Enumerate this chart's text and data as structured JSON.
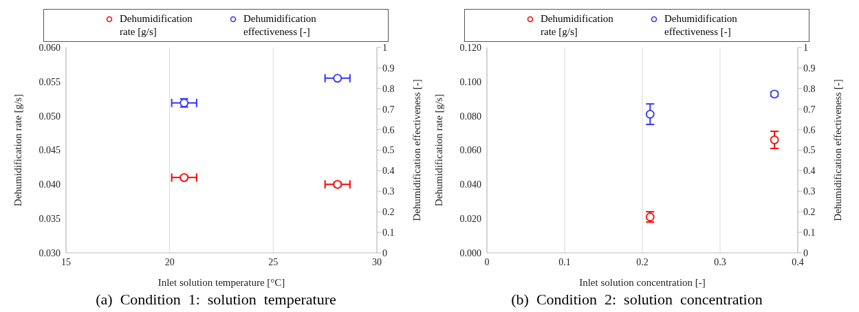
{
  "chart_data": [
    {
      "type": "scatter",
      "title": "(a)  Condition  1:  solution  temperature",
      "xlabel": "Inlet solution temperature [°C]",
      "ylabel": "Dehumidification  rate [g/s]",
      "y2label": "Dehumidification  effectiveness [-]",
      "xlim": [
        15,
        30
      ],
      "xticks": [
        15,
        20,
        25,
        30
      ],
      "ylim": [
        0.03,
        0.06
      ],
      "yticks": [
        {
          "value": 0.03,
          "label": "0.030"
        },
        {
          "value": 0.035,
          "label": "0.035"
        },
        {
          "value": 0.04,
          "label": "0.040"
        },
        {
          "value": 0.045,
          "label": "0.045"
        },
        {
          "value": 0.05,
          "label": "0.050"
        },
        {
          "value": 0.055,
          "label": "0.055"
        },
        {
          "value": 0.06,
          "label": "0.060"
        }
      ],
      "y2lim": [
        0,
        1
      ],
      "y2ticks": [
        0,
        0.1,
        0.2,
        0.3,
        0.4,
        0.5,
        0.6,
        0.7,
        0.8,
        0.9,
        1
      ],
      "grid": true,
      "legend": "top",
      "marker": "circle",
      "series": [
        {
          "name": "Dehumidification rate [g/s]",
          "color": "#ff0000",
          "x": [
            20.7,
            28.1
          ],
          "values": [
            0.041,
            0.04
          ],
          "errors": [
            0.0002,
            0.0003
          ],
          "xerrors": [
            0.6,
            0.6
          ]
        },
        {
          "name": "Dehumidification effectiveness [-]",
          "color": "#3333ff",
          "axis": "y2",
          "x": [
            20.7,
            28.1
          ],
          "values": [
            0.73,
            0.85
          ],
          "errors": [
            0.02,
            0.005
          ],
          "xerrors": [
            0.6,
            0.6
          ]
        }
      ]
    },
    {
      "type": "scatter",
      "title": "(b)  Condition  2:  solution  concentration",
      "xlabel": "Inlet solution concentration [-]",
      "ylabel": "Dehumidification  rate [g/s]",
      "y2label": "Dehumidification  effectiveness [-]",
      "xlim": [
        0,
        0.4
      ],
      "xticks": [
        0,
        0.1,
        0.2,
        0.3,
        0.4
      ],
      "ylim": [
        0,
        0.12
      ],
      "yticks": [
        {
          "value": 0,
          "label": "0.000"
        },
        {
          "value": 0.02,
          "label": "0.020"
        },
        {
          "value": 0.04,
          "label": "0.040"
        },
        {
          "value": 0.06,
          "label": "0.060"
        },
        {
          "value": 0.08,
          "label": "0.080"
        },
        {
          "value": 0.1,
          "label": "0.100"
        },
        {
          "value": 0.12,
          "label": "0.120"
        }
      ],
      "y2lim": [
        0,
        1
      ],
      "y2ticks": [
        0,
        0.1,
        0.2,
        0.3,
        0.4,
        0.5,
        0.6,
        0.7,
        0.8,
        0.9,
        1
      ],
      "grid": true,
      "legend": "top",
      "marker": "circle",
      "series": [
        {
          "name": "Dehumidification rate [g/s]",
          "color": "#ff0000",
          "x": [
            0.21,
            0.37
          ],
          "values": [
            0.021,
            0.066
          ],
          "errors": [
            0.003,
            0.005
          ]
        },
        {
          "name": "Dehumidification effectiveness [-]",
          "color": "#3333ff",
          "axis": "y2",
          "x": [
            0.21,
            0.37
          ],
          "values": [
            0.675,
            0.773
          ],
          "errors": [
            0.05,
            0.01
          ]
        }
      ]
    }
  ]
}
